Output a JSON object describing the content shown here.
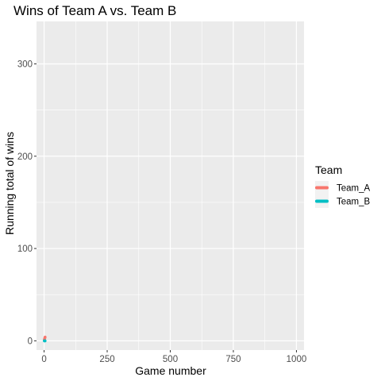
{
  "chart_data": {
    "type": "line",
    "title": "Wins of Team A vs. Team B",
    "xlabel": "Game number",
    "ylabel": "Running total of wins",
    "xlim": [
      -30,
      1030
    ],
    "ylim": [
      -10,
      346
    ],
    "x_ticks": [
      0,
      250,
      500,
      750,
      1000
    ],
    "x_tick_labels": [
      "0",
      "250",
      "500",
      "750",
      "1000"
    ],
    "y_ticks": [
      0,
      100,
      200,
      300
    ],
    "y_tick_labels": [
      "0",
      "100",
      "200",
      "300"
    ],
    "grid": true,
    "legend": {
      "title": "Team",
      "position": "right"
    },
    "series": [
      {
        "name": "Team_A",
        "color": "#F8766D",
        "x": [
          1,
          2,
          3,
          4
        ],
        "y": [
          1,
          2,
          3,
          4
        ]
      },
      {
        "name": "Team_B",
        "color": "#00BFC4",
        "x": [
          1,
          2,
          3,
          4
        ],
        "y": [
          0,
          0,
          0,
          0
        ]
      }
    ],
    "panel_background": "#EBEBEB",
    "grid_color": "#FFFFFF"
  }
}
